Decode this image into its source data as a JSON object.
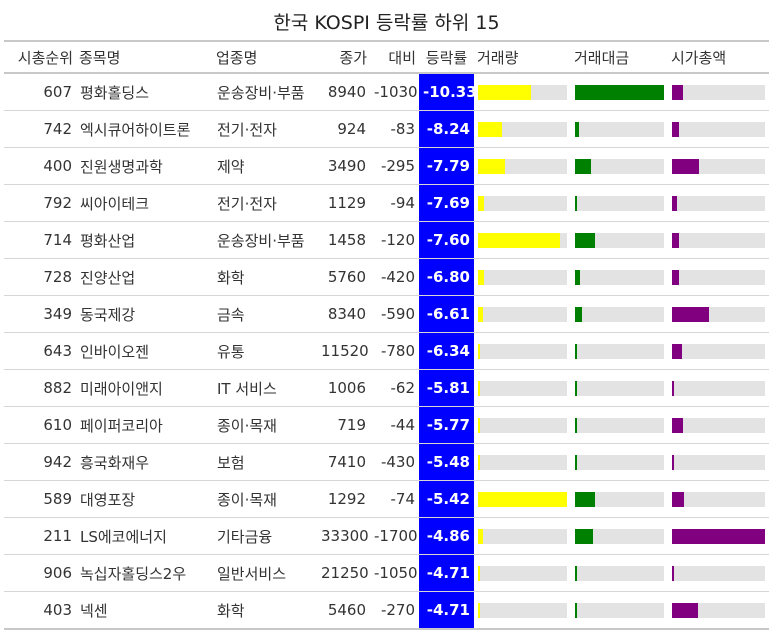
{
  "title": "한국 KOSPI 등락률 하위 15",
  "colors": {
    "rate_bg": "#0000ff",
    "volume": "#ffff00",
    "value": "#008000",
    "market_cap": "#800080",
    "track": "#e3e3e3"
  },
  "headers": {
    "rank": "시총순위",
    "name": "종목명",
    "sector": "업종명",
    "price": "종가",
    "change": "대비",
    "rate": "등락률",
    "volume": "거래량",
    "value": "거래대금",
    "market_cap": "시가총액"
  },
  "chart_data": {
    "type": "table",
    "title": "한국 KOSPI 등락률 하위 15",
    "bar_columns": [
      "volume",
      "value",
      "market_cap"
    ],
    "bar_fraction_note": "bars show relative magnitude within column (0-1 of column max)",
    "rows": [
      {
        "rank": "607",
        "name": "평화홀딩스",
        "sector": "운송장비·부품",
        "price": "8940",
        "change": "-1030",
        "rate": "-10.33",
        "volume": 0.6,
        "value": 1.0,
        "market_cap": 0.12
      },
      {
        "rank": "742",
        "name": "엑시큐어하이트론",
        "sector": "전기·전자",
        "price": "924",
        "change": "-83",
        "rate": "-8.24",
        "volume": 0.27,
        "value": 0.04,
        "market_cap": 0.07
      },
      {
        "rank": "400",
        "name": "진원생명과학",
        "sector": "제약",
        "price": "3490",
        "change": "-295",
        "rate": "-7.79",
        "volume": 0.3,
        "value": 0.18,
        "market_cap": 0.29
      },
      {
        "rank": "792",
        "name": "씨아이테크",
        "sector": "전기·전자",
        "price": "1129",
        "change": "-94",
        "rate": "-7.69",
        "volume": 0.07,
        "value": 0.01,
        "market_cap": 0.05
      },
      {
        "rank": "714",
        "name": "평화산업",
        "sector": "운송장비·부품",
        "price": "1458",
        "change": "-120",
        "rate": "-7.60",
        "volume": 0.92,
        "value": 0.23,
        "market_cap": 0.08
      },
      {
        "rank": "728",
        "name": "진양산업",
        "sector": "화학",
        "price": "5760",
        "change": "-420",
        "rate": "-6.80",
        "volume": 0.07,
        "value": 0.06,
        "market_cap": 0.07
      },
      {
        "rank": "349",
        "name": "동국제강",
        "sector": "금속",
        "price": "8340",
        "change": "-590",
        "rate": "-6.61",
        "volume": 0.06,
        "value": 0.08,
        "market_cap": 0.4
      },
      {
        "rank": "643",
        "name": "인바이오젠",
        "sector": "유통",
        "price": "11520",
        "change": "-780",
        "rate": "-6.34",
        "volume": 0.02,
        "value": 0.02,
        "market_cap": 0.11
      },
      {
        "rank": "882",
        "name": "미래아이앤지",
        "sector": "IT 서비스",
        "price": "1006",
        "change": "-62",
        "rate": "-5.81",
        "volume": 0.02,
        "value": 0.01,
        "market_cap": 0.02
      },
      {
        "rank": "610",
        "name": "페이퍼코리아",
        "sector": "종이·목재",
        "price": "719",
        "change": "-44",
        "rate": "-5.77",
        "volume": 0.02,
        "value": 0.01,
        "market_cap": 0.12
      },
      {
        "rank": "942",
        "name": "흥국화재우",
        "sector": "보험",
        "price": "7410",
        "change": "-430",
        "rate": "-5.48",
        "volume": 0.02,
        "value": 0.01,
        "market_cap": 0.01
      },
      {
        "rank": "589",
        "name": "대영포장",
        "sector": "종이·목재",
        "price": "1292",
        "change": "-74",
        "rate": "-5.42",
        "volume": 1.0,
        "value": 0.22,
        "market_cap": 0.13
      },
      {
        "rank": "211",
        "name": "LS에코에너지",
        "sector": "기타금융",
        "price": "33300",
        "change": "-1700",
        "rate": "-4.86",
        "volume": 0.06,
        "value": 0.2,
        "market_cap": 1.0
      },
      {
        "rank": "906",
        "name": "녹십자홀딩스2우",
        "sector": "일반서비스",
        "price": "21250",
        "change": "-1050",
        "rate": "-4.71",
        "volume": 0.01,
        "value": 0.01,
        "market_cap": 0.01
      },
      {
        "rank": "403",
        "name": "넥센",
        "sector": "화학",
        "price": "5460",
        "change": "-270",
        "rate": "-4.71",
        "volume": 0.02,
        "value": 0.01,
        "market_cap": 0.28
      }
    ]
  }
}
